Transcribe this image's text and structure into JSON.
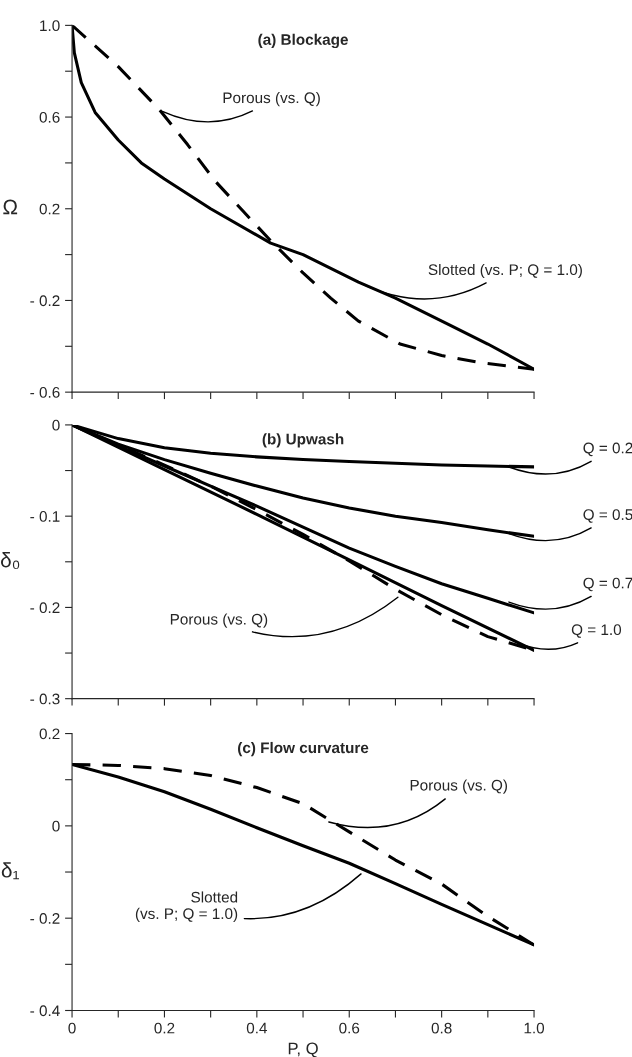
{
  "chart_data": [
    {
      "type": "line",
      "title": "(a) Blockage",
      "ylabel": "Ω",
      "tick_labels": "y",
      "grid": false,
      "marker": "none",
      "xlim": [
        0,
        1
      ],
      "xticks": [
        0,
        0.1,
        0.2,
        0.3,
        0.4,
        0.5,
        0.6,
        0.7,
        0.8,
        0.9,
        1.0
      ],
      "ylim": [
        -0.6,
        1.0
      ],
      "yticks": [
        {
          "value": 1.0,
          "label": "1.0"
        },
        {
          "value": 0.8,
          "label": null
        },
        0.6,
        {
          "value": 0.4,
          "label": null
        },
        0.2,
        {
          "value": 0.0,
          "label": null
        },
        {
          "value": -0.2,
          "label": "- 0.2"
        },
        {
          "value": -0.4,
          "label": null
        },
        {
          "value": -0.6,
          "label": "- 0.6"
        }
      ],
      "series": [
        {
          "color": "#000000",
          "line_style": "solid",
          "x": [
            0,
            0.005,
            0.02,
            0.05,
            0.1,
            0.15,
            0.2,
            0.3,
            0.43,
            0.5,
            0.62,
            0.7,
            0.82,
            0.9,
            1.0
          ],
          "values": [
            1.0,
            0.88,
            0.75,
            0.62,
            0.5,
            0.4,
            0.33,
            0.2,
            0.05,
            0.0,
            -0.12,
            -0.19,
            -0.31,
            -0.39,
            -0.5
          ]
        },
        {
          "color": "#000000",
          "line_style": "dashed",
          "x": [
            0,
            0.1,
            0.19,
            0.25,
            0.31,
            0.37,
            0.43,
            0.5,
            0.56,
            0.62,
            0.71,
            0.8,
            0.88,
            1.0
          ],
          "values": [
            1.0,
            0.82,
            0.63,
            0.48,
            0.32,
            0.19,
            0.06,
            -0.08,
            -0.19,
            -0.29,
            -0.39,
            -0.44,
            -0.47,
            -0.5
          ]
        }
      ],
      "annotations": [
        {
          "text": "Porous (vs. Q)",
          "x": 0.19,
          "y": 0.63
        },
        {
          "text": "Slotted (vs. P; Q = 1.0)",
          "x": 0.62,
          "y": -0.12
        }
      ]
    },
    {
      "type": "line",
      "title": "(b) Upwash",
      "ylabel": "δ₀",
      "tick_labels": "y",
      "grid": false,
      "marker": "none",
      "xlim": [
        0,
        1
      ],
      "xticks": [
        0,
        0.1,
        0.2,
        0.3,
        0.4,
        0.5,
        0.6,
        0.7,
        0.8,
        0.9,
        1.0
      ],
      "ylim": [
        -0.3,
        0
      ],
      "yticks": [
        0,
        {
          "value": -0.05,
          "label": null
        },
        {
          "value": -0.1,
          "label": "- 0.1"
        },
        {
          "value": -0.15,
          "label": null
        },
        {
          "value": -0.2,
          "label": "- 0.2"
        },
        {
          "value": -0.25,
          "label": null
        },
        {
          "value": -0.3,
          "label": "- 0.3"
        }
      ],
      "series": [
        {
          "color": "#000000",
          "line_style": "solid",
          "x": [
            0,
            0.1,
            0.2,
            0.3,
            0.4,
            0.5,
            0.6,
            0.7,
            0.8,
            0.9,
            1.0
          ],
          "values": [
            0,
            -0.015,
            -0.025,
            -0.031,
            -0.035,
            -0.038,
            -0.04,
            -0.042,
            -0.044,
            -0.045,
            -0.046
          ]
        },
        {
          "color": "#000000",
          "line_style": "solid",
          "x": [
            0,
            0.1,
            0.2,
            0.3,
            0.4,
            0.5,
            0.6,
            0.7,
            0.8,
            0.9,
            1.0
          ],
          "values": [
            0,
            -0.021,
            -0.038,
            -0.053,
            -0.067,
            -0.08,
            -0.091,
            -0.1,
            -0.107,
            -0.115,
            -0.122
          ]
        },
        {
          "color": "#000000",
          "line_style": "solid",
          "x": [
            0,
            0.1,
            0.2,
            0.3,
            0.4,
            0.5,
            0.6,
            0.7,
            0.8,
            0.9,
            1.0
          ],
          "values": [
            0,
            -0.023,
            -0.045,
            -0.067,
            -0.089,
            -0.112,
            -0.135,
            -0.155,
            -0.174,
            -0.19,
            -0.206
          ]
        },
        {
          "color": "#000000",
          "line_style": "solid",
          "x": [
            0,
            0.2,
            0.4,
            0.6,
            0.8,
            1.0
          ],
          "values": [
            0,
            -0.049,
            -0.098,
            -0.148,
            -0.198,
            -0.247
          ]
        },
        {
          "color": "#000000",
          "line_style": "dashed",
          "x": [
            0,
            0.1,
            0.2,
            0.3,
            0.4,
            0.5,
            0.6,
            0.7,
            0.8,
            0.9,
            1.0
          ],
          "values": [
            0,
            -0.022,
            -0.044,
            -0.067,
            -0.093,
            -0.12,
            -0.149,
            -0.18,
            -0.208,
            -0.232,
            -0.247
          ]
        }
      ],
      "annotations": [
        {
          "text": "Q = 0.2",
          "x": 0.94,
          "y": -0.045
        },
        {
          "text": "Q = 0.5",
          "x": 0.94,
          "y": -0.118
        },
        {
          "text": "Q = 0.7",
          "x": 0.94,
          "y": -0.193
        },
        {
          "text": "Q = 1.0",
          "x": 0.96,
          "y": -0.238
        },
        {
          "text": "Porous (vs. Q)",
          "x": 0.71,
          "y": -0.187
        }
      ]
    },
    {
      "type": "line",
      "title": "(c) Flow curvature",
      "xlabel": "P, Q",
      "ylabel": "δ₁",
      "grid": false,
      "marker": "none",
      "xlim": [
        0,
        1
      ],
      "xticks": [
        0,
        {
          "value": 0.1,
          "label": null
        },
        0.2,
        {
          "value": 0.3,
          "label": null
        },
        0.4,
        {
          "value": 0.5,
          "label": null
        },
        0.6,
        {
          "value": 0.7,
          "label": null
        },
        0.8,
        {
          "value": 0.9,
          "label": null
        },
        {
          "value": 1.0,
          "label": "1.0"
        }
      ],
      "ylim": [
        -0.4,
        0.2
      ],
      "yticks": [
        0.2,
        {
          "value": 0.1,
          "label": null
        },
        0,
        {
          "value": -0.1,
          "label": null
        },
        {
          "value": -0.2,
          "label": "- 0.2"
        },
        {
          "value": -0.3,
          "label": null
        },
        {
          "value": -0.4,
          "label": "- 0.4"
        }
      ],
      "series": [
        {
          "color": "#000000",
          "line_style": "solid",
          "x": [
            0,
            0.1,
            0.2,
            0.3,
            0.4,
            0.5,
            0.6,
            0.7,
            0.8,
            0.9,
            1.0
          ],
          "values": [
            0.133,
            0.106,
            0.074,
            0.036,
            -0.004,
            -0.043,
            -0.081,
            -0.125,
            -0.17,
            -0.214,
            -0.258
          ]
        },
        {
          "color": "#000000",
          "line_style": "dashed",
          "x": [
            0,
            0.1,
            0.2,
            0.3,
            0.4,
            0.5,
            0.6,
            0.7,
            0.8,
            0.9,
            1.0
          ],
          "values": [
            0.133,
            0.131,
            0.124,
            0.109,
            0.083,
            0.048,
            -0.013,
            -0.074,
            -0.126,
            -0.196,
            -0.258
          ]
        }
      ],
      "annotations": [
        {
          "text": "Porous (vs. Q)",
          "x": 0.55,
          "y": 0.01
        },
        {
          "text": "Slotted\n(vs. P; Q = 1.0)",
          "x": 0.63,
          "y": -0.1
        }
      ]
    }
  ]
}
